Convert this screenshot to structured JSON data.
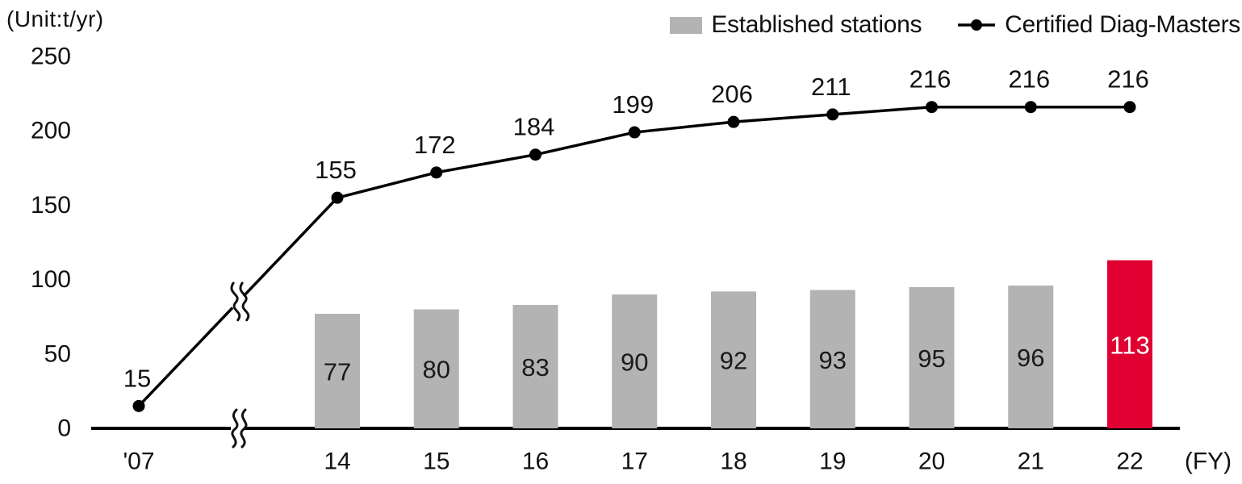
{
  "colors": {
    "bar": "#b3b3b3",
    "bar_highlight": "#e00032",
    "line": "#000000",
    "text": "#111111",
    "bar_label": "#1a1a1a",
    "bar_highlight_label": "#ffffff",
    "background": "#ffffff"
  },
  "chart_data": {
    "type": "bar+line combo",
    "title": "",
    "ylabel": "(Unit:t/yr)",
    "xlabel": "(FY)",
    "categories": [
      "'07",
      "14",
      "15",
      "16",
      "17",
      "18",
      "19",
      "20",
      "21",
      "22"
    ],
    "x_axis_break_between": [
      "'07",
      "14"
    ],
    "series": [
      {
        "name": "Established stations",
        "type": "bar",
        "color": "#b3b3b3",
        "highlight_category": "22",
        "highlight_color": "#e00032",
        "values": [
          null,
          77,
          80,
          83,
          90,
          92,
          93,
          95,
          96,
          113
        ]
      },
      {
        "name": "Certified Diag-Masters",
        "type": "line",
        "color": "#000000",
        "values": [
          15,
          155,
          172,
          184,
          199,
          206,
          211,
          216,
          216,
          216
        ]
      }
    ],
    "y_ticks": [
      0,
      50,
      100,
      150,
      200,
      250
    ],
    "ylim": [
      0,
      250
    ],
    "grid": false,
    "legend_position": "top-right"
  }
}
